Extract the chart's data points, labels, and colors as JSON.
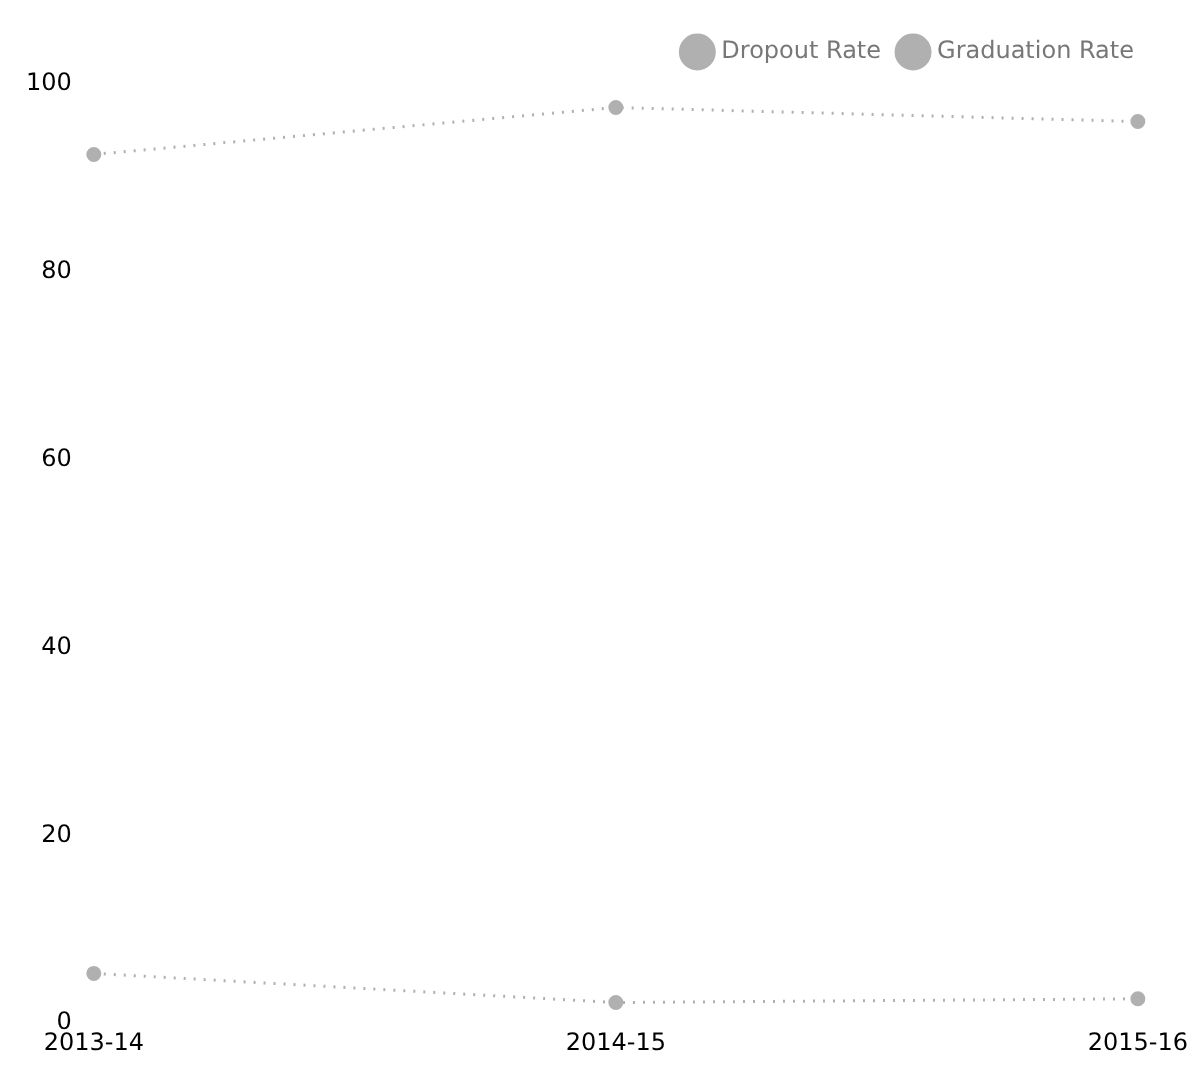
{
  "chart_data": {
    "type": "line",
    "categories": [
      "2013-14",
      "2014-15",
      "2015-16"
    ],
    "series": [
      {
        "name": "Dropout Rate",
        "color": "#b0b0b0",
        "values": [
          5.3,
          2.2,
          2.6
        ]
      },
      {
        "name": "Graduation Rate",
        "color": "#b0b0b0",
        "values": [
          92.5,
          97.5,
          96
        ]
      }
    ],
    "ylim": [
      0,
      100
    ],
    "yticks": [
      0,
      20,
      40,
      60,
      80,
      100
    ],
    "grid": false,
    "legend": "top right",
    "line_style": "dotted",
    "marker": "circle"
  }
}
